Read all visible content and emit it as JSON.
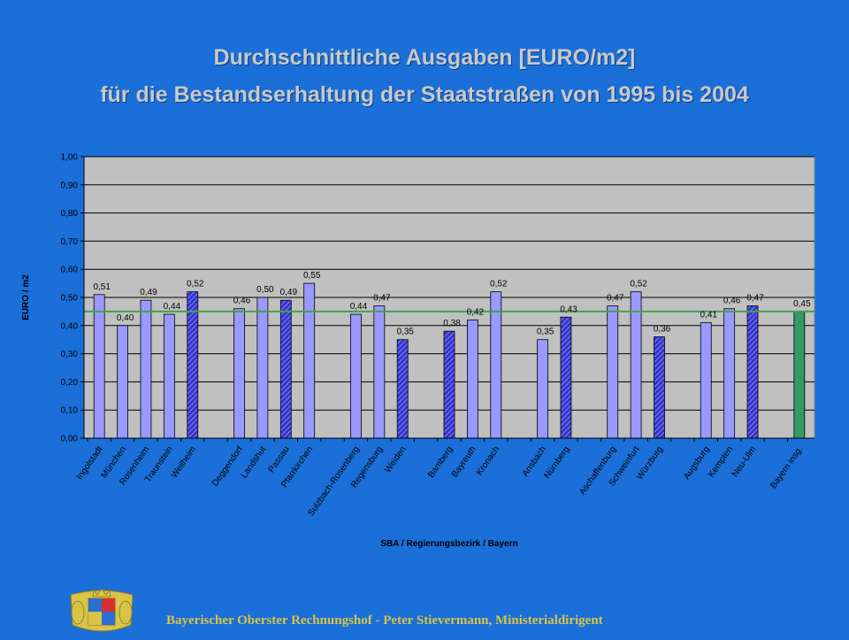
{
  "header": {
    "title_line1": "Durchschnittliche Ausgaben [EURO/m2]",
    "title_line2": "für die Bestandserhaltung der Staatstraßen von 1995 bis 2004"
  },
  "footer": {
    "text": "Bayerischer Oberster Rechnungshof - Peter Stievermann, Ministerialdirigent"
  },
  "colors": {
    "background": "#1a6fd8",
    "plot_area": "#c0c0c0",
    "bar_fill": "#9999ff",
    "bar_hatched": "#3333cc",
    "bar_total": "#339966",
    "average_line": "#3fa34d",
    "title": "#c9c9c9",
    "footer": "#d8c447"
  },
  "chart_data": {
    "type": "bar",
    "title": "",
    "xlabel": "SBA / Regierungsbezirk / Bayern",
    "ylabel": "EURO / m2",
    "ylim": [
      0,
      1.0
    ],
    "yticks": [
      "0,00",
      "0,10",
      "0,20",
      "0,30",
      "0,40",
      "0,50",
      "0,60",
      "0,70",
      "0,80",
      "0,90",
      "1,00"
    ],
    "grid": "horizontal",
    "reference_line": 0.45,
    "categories": [
      "Ingolstadt",
      "München",
      "Rosenheim",
      "Traunstein",
      "Weilheim",
      "",
      "Deggendorf",
      "Landshut",
      "Passau",
      "Pfarrkirchen",
      "",
      "Sulzbach-Rosenberg",
      "Regensburg",
      "Weiden",
      "",
      "Bamberg",
      "Bayreuth",
      "Kronach",
      "",
      "Ansbach",
      "Nürnberg",
      "",
      "Aschaffenburg",
      "Schweinfurt",
      "Würzburg",
      "",
      "Augsburg",
      "Kempten",
      "Neu-Ulm",
      "",
      "Bayern insg."
    ],
    "values": [
      0.51,
      0.4,
      0.49,
      0.44,
      0.52,
      null,
      0.46,
      0.5,
      0.49,
      0.55,
      null,
      0.44,
      0.47,
      0.35,
      null,
      0.38,
      0.42,
      0.52,
      null,
      0.35,
      0.43,
      null,
      0.47,
      0.52,
      0.36,
      null,
      0.41,
      0.46,
      0.47,
      null,
      0.45
    ],
    "labels": [
      "0,51",
      "0,40",
      "0,49",
      "0,44",
      "0,52",
      "",
      "0,46",
      "0,50",
      "0,49",
      "0,55",
      "",
      "0,44",
      "0,47",
      "0,35",
      "",
      "0,38",
      "0,42",
      "0,52",
      "",
      "0,35",
      "0,43",
      "",
      "0,47",
      "0,52",
      "0,36",
      "",
      "0,41",
      "0,46",
      "0,47",
      "",
      "0,45"
    ],
    "styles": [
      "plain",
      "plain",
      "plain",
      "plain",
      "hatched",
      "",
      "plain",
      "plain",
      "hatched",
      "plain",
      "",
      "plain",
      "plain",
      "hatched",
      "",
      "hatched",
      "plain",
      "plain",
      "",
      "plain",
      "hatched",
      "",
      "plain",
      "plain",
      "hatched",
      "",
      "plain",
      "plain",
      "hatched",
      "",
      "total"
    ]
  }
}
